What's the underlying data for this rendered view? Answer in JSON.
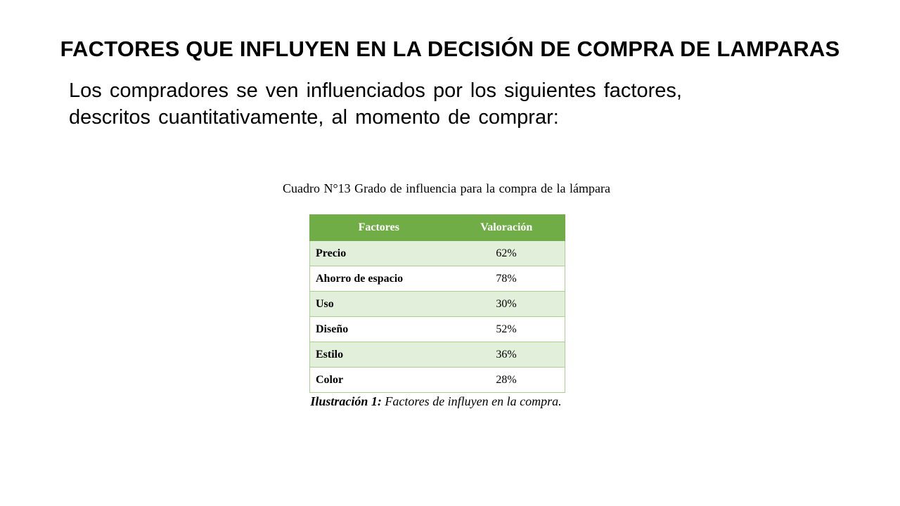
{
  "slide": {
    "title": "FACTORES QUE INFLUYEN EN LA DECISIÓN DE COMPRA DE LAMPARAS",
    "body_line1": "Los compradores se ven influenciados por los siguientes factores,",
    "body_line2": "descritos cuantitativamente, al momento de comprar:"
  },
  "table": {
    "caption": "Cuadro N°13 Grado de influencia para la compra de la lámpara",
    "headers": [
      "Factores",
      "Valoración"
    ],
    "rows": [
      {
        "factor": "Precio",
        "value": "62%"
      },
      {
        "factor": "Ahorro de espacio",
        "value": "78%"
      },
      {
        "factor": "Uso",
        "value": "30%"
      },
      {
        "factor": "Diseño",
        "value": "52%"
      },
      {
        "factor": "Estilo",
        "value": "36%"
      },
      {
        "factor": "Color",
        "value": "28%"
      }
    ],
    "colors": {
      "header_bg": "#70ad47",
      "band_bg": "#e2efda",
      "border": "#a9d08e"
    }
  },
  "figure": {
    "label": "Ilustración 1:",
    "text": "Factores de influyen en la compra."
  }
}
